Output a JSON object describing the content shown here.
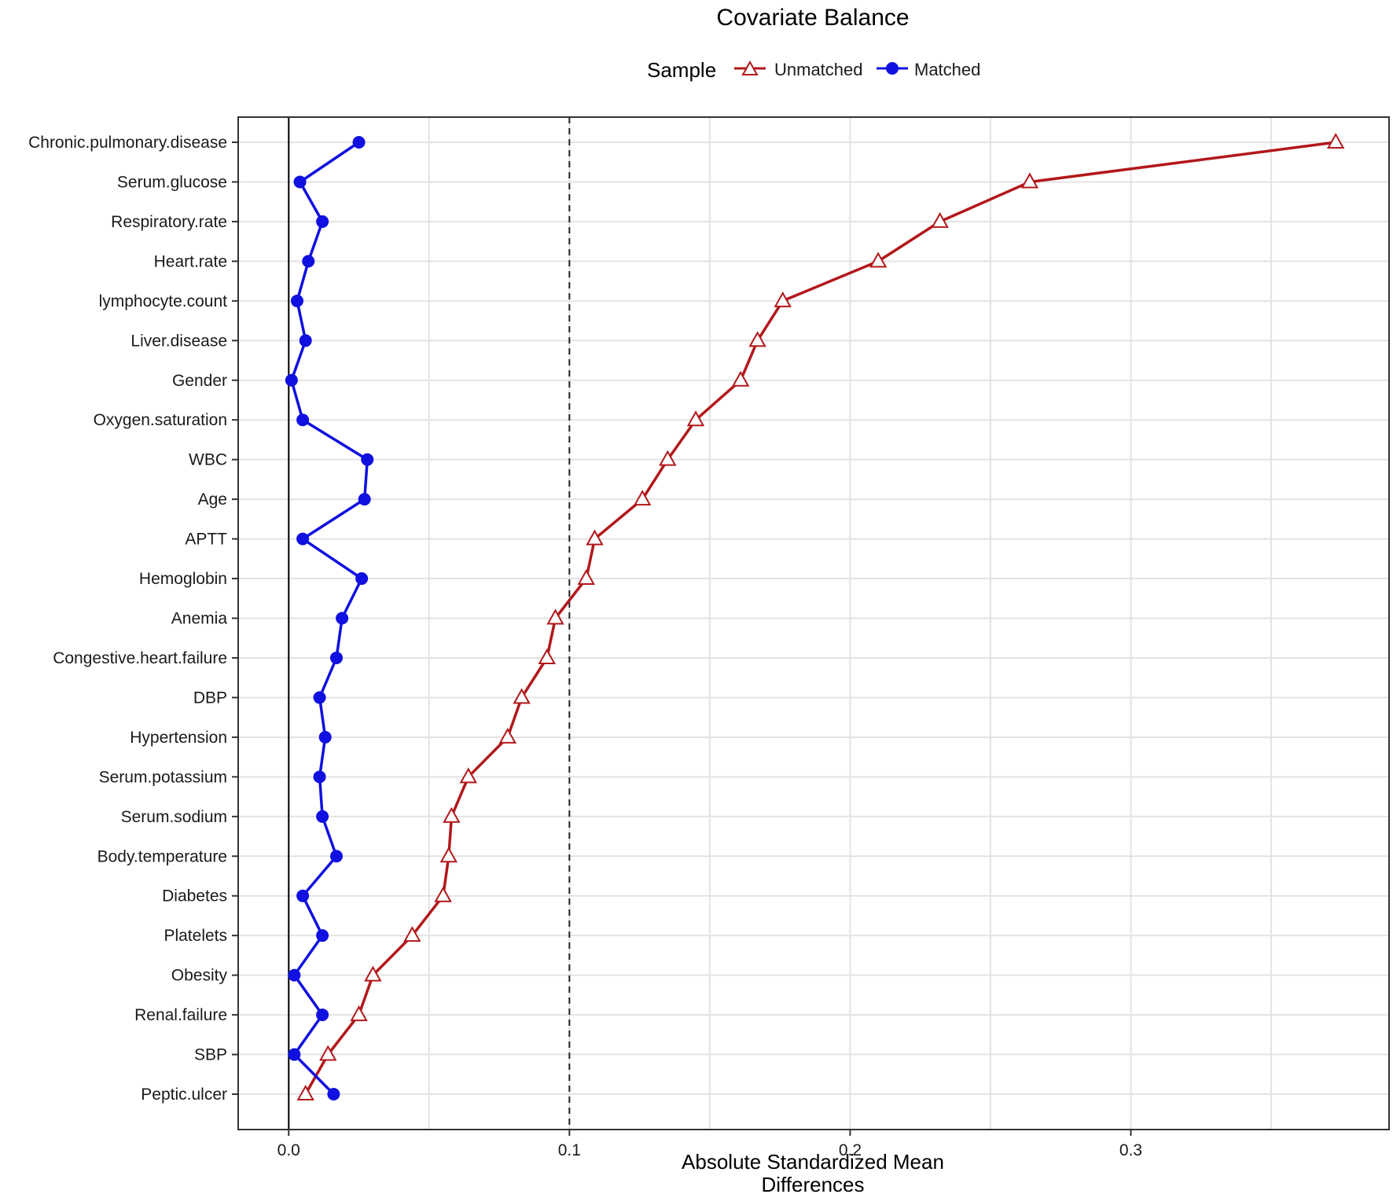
{
  "chart_data": {
    "type": "line",
    "title": "Covariate Balance",
    "xlabel_lines": [
      "Absolute Standardized Mean",
      "Differences"
    ],
    "ylabel": "",
    "xlim": [
      -0.018,
      0.392
    ],
    "xticks": [
      0.0,
      0.1,
      0.2,
      0.3
    ],
    "xtick_labels": [
      "0.0",
      "0.1",
      "0.2",
      "0.3"
    ],
    "threshold": 0.1,
    "grid": true,
    "legend": {
      "title": "Sample",
      "placement": "top"
    },
    "categories": [
      "Chronic.pulmonary.disease",
      "Serum.glucose",
      "Respiratory.rate",
      "Heart.rate",
      "lymphocyte.count",
      "Liver.disease",
      "Gender",
      "Oxygen.saturation",
      "WBC",
      "Age",
      "APTT",
      "Hemoglobin",
      "Anemia",
      "Congestive.heart.failure",
      "DBP",
      "Hypertension",
      "Serum.potassium",
      "Serum.sodium",
      "Body.temperature",
      "Diabetes",
      "Platelets",
      "Obesity",
      "Renal.failure",
      "SBP",
      "Peptic.ulcer"
    ],
    "series": [
      {
        "name": "Unmatched",
        "color": "#b2181b",
        "marker": "triangle-open",
        "values": [
          0.373,
          0.264,
          0.232,
          0.21,
          0.176,
          0.167,
          0.161,
          0.145,
          0.135,
          0.126,
          0.109,
          0.106,
          0.095,
          0.092,
          0.083,
          0.078,
          0.064,
          0.058,
          0.057,
          0.055,
          0.044,
          0.03,
          0.025,
          0.014,
          0.006
        ]
      },
      {
        "name": "Matched",
        "color": "#1010e0",
        "marker": "circle-filled",
        "values": [
          0.025,
          0.004,
          0.012,
          0.007,
          0.003,
          0.006,
          0.001,
          0.005,
          0.028,
          0.027,
          0.005,
          0.026,
          0.019,
          0.017,
          0.011,
          0.013,
          0.011,
          0.012,
          0.017,
          0.005,
          0.012,
          0.002,
          0.012,
          0.002,
          0.016
        ]
      }
    ]
  }
}
